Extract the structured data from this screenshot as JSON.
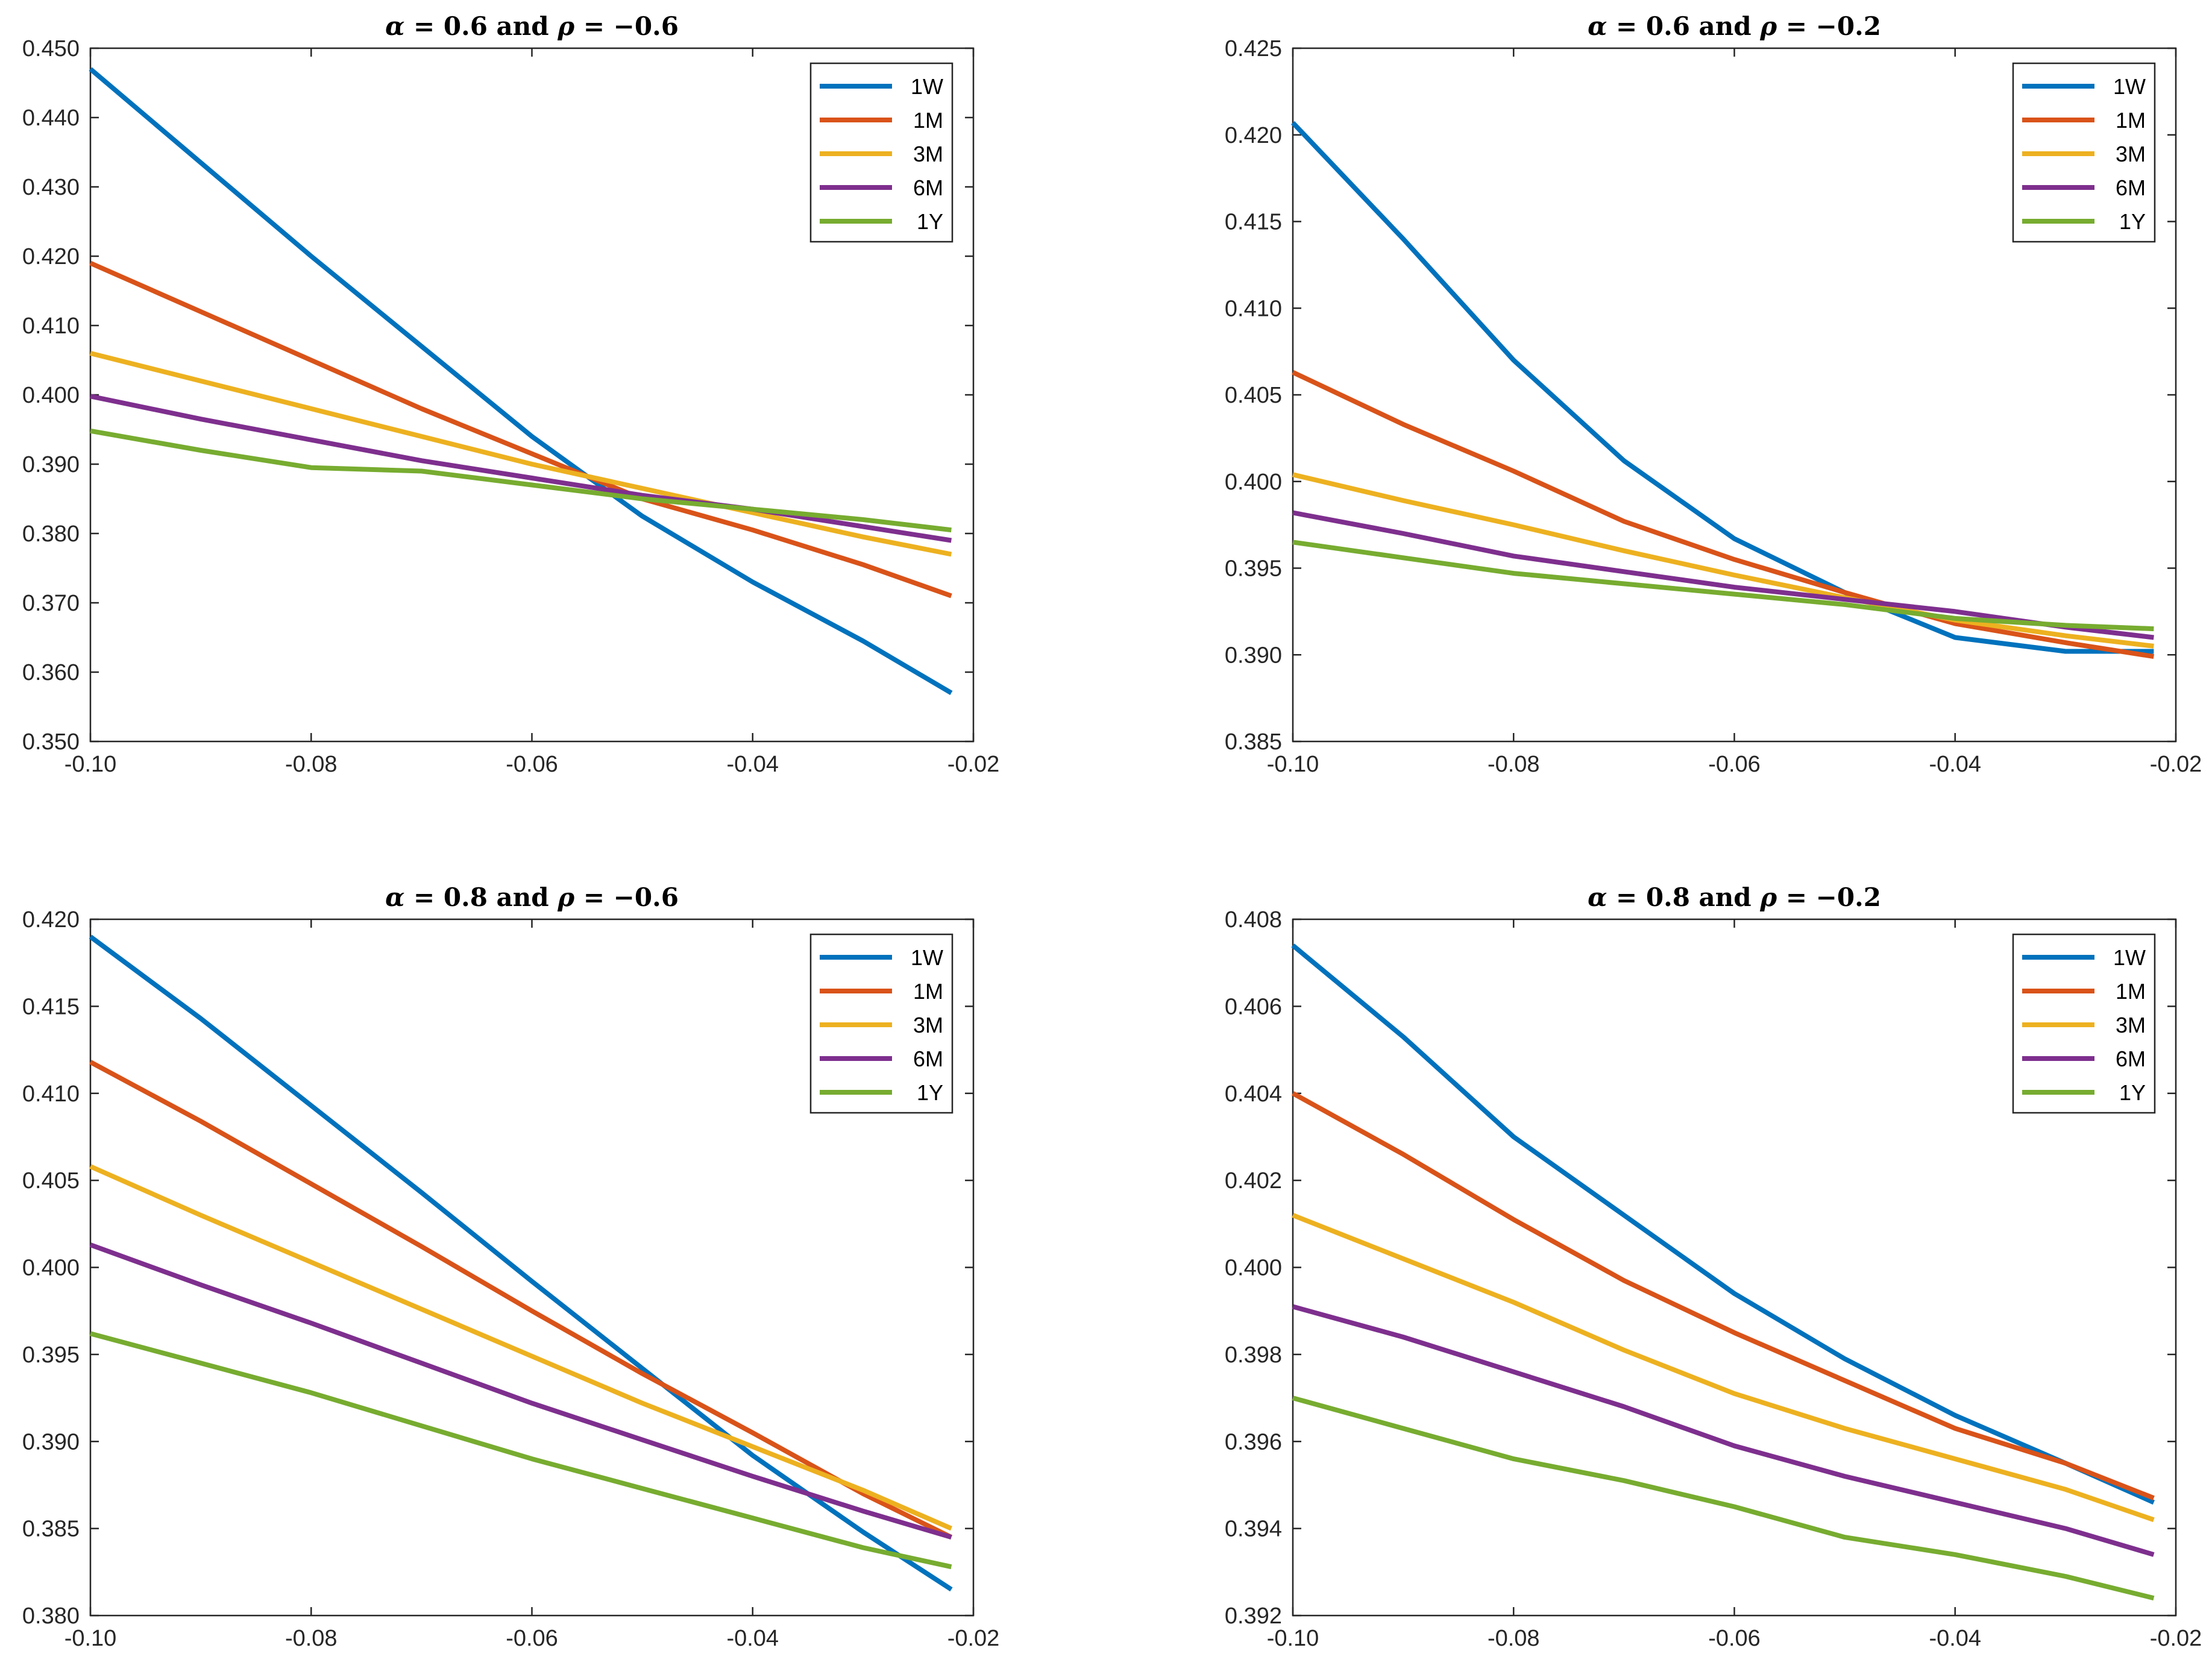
{
  "chart_data": [
    {
      "type": "line",
      "title": "α = 0.6 and ρ = −0.6",
      "title_parts": [
        "α",
        " = 0.6 and ",
        "ρ",
        " = −0.6"
      ],
      "xlabel": "",
      "ylabel": "",
      "xlim": [
        -0.1,
        -0.02
      ],
      "ylim": [
        0.35,
        0.45
      ],
      "x_ticks": [
        -0.1,
        -0.08,
        -0.06,
        -0.04,
        -0.02
      ],
      "x_tick_labels": [
        "-0.10",
        "-0.08",
        "-0.06",
        "-0.04",
        "-0.02"
      ],
      "y_ticks": [
        0.35,
        0.36,
        0.37,
        0.38,
        0.39,
        0.4,
        0.41,
        0.42,
        0.43,
        0.44,
        0.45
      ],
      "y_tick_labels": [
        "0.350",
        "0.360",
        "0.370",
        "0.380",
        "0.390",
        "0.400",
        "0.410",
        "0.420",
        "0.430",
        "0.440",
        "0.450"
      ],
      "grid": false,
      "legend_position": "top-right",
      "x": [
        -0.1,
        -0.09,
        -0.08,
        -0.07,
        -0.06,
        -0.05,
        -0.04,
        -0.03,
        -0.022
      ],
      "series": [
        {
          "name": "1W",
          "values": [
            0.447,
            0.4335,
            0.42,
            0.407,
            0.394,
            0.3825,
            0.373,
            0.3645,
            0.357
          ]
        },
        {
          "name": "1M",
          "values": [
            0.419,
            0.412,
            0.405,
            0.398,
            0.3915,
            0.385,
            0.3805,
            0.3755,
            0.371
          ]
        },
        {
          "name": "3M",
          "values": [
            0.406,
            0.402,
            0.398,
            0.394,
            0.39,
            0.3865,
            0.383,
            0.3795,
            0.377
          ]
        },
        {
          "name": "6M",
          "values": [
            0.3998,
            0.3965,
            0.3935,
            0.3905,
            0.388,
            0.3855,
            0.3835,
            0.381,
            0.379
          ]
        },
        {
          "name": "1Y",
          "values": [
            0.3948,
            0.392,
            0.3895,
            0.389,
            0.387,
            0.385,
            0.3835,
            0.382,
            0.3805
          ]
        }
      ]
    },
    {
      "type": "line",
      "title": "α = 0.6 and ρ = −0.2",
      "title_parts": [
        "α",
        " = 0.6 and ",
        "ρ",
        " = −0.2"
      ],
      "xlabel": "",
      "ylabel": "",
      "xlim": [
        -0.1,
        -0.02
      ],
      "ylim": [
        0.385,
        0.425
      ],
      "x_ticks": [
        -0.1,
        -0.08,
        -0.06,
        -0.04,
        -0.02
      ],
      "x_tick_labels": [
        "-0.10",
        "-0.08",
        "-0.06",
        "-0.04",
        "-0.02"
      ],
      "y_ticks": [
        0.385,
        0.39,
        0.395,
        0.4,
        0.405,
        0.41,
        0.415,
        0.42,
        0.425
      ],
      "y_tick_labels": [
        "0.385",
        "0.390",
        "0.395",
        "0.400",
        "0.405",
        "0.410",
        "0.415",
        "0.420",
        "0.425"
      ],
      "grid": false,
      "legend_position": "top-right",
      "x": [
        -0.1,
        -0.09,
        -0.08,
        -0.07,
        -0.06,
        -0.05,
        -0.04,
        -0.03,
        -0.022
      ],
      "series": [
        {
          "name": "1W",
          "values": [
            0.4207,
            0.414,
            0.407,
            0.4012,
            0.3967,
            0.3936,
            0.391,
            0.3902,
            0.3902
          ]
        },
        {
          "name": "1M",
          "values": [
            0.4063,
            0.4033,
            0.4006,
            0.3977,
            0.3955,
            0.3936,
            0.3918,
            0.3907,
            0.3899
          ]
        },
        {
          "name": "3M",
          "values": [
            0.4004,
            0.3989,
            0.3975,
            0.396,
            0.3946,
            0.3933,
            0.392,
            0.3911,
            0.3905
          ]
        },
        {
          "name": "6M",
          "values": [
            0.3982,
            0.397,
            0.3957,
            0.3948,
            0.3939,
            0.3932,
            0.3925,
            0.3916,
            0.391
          ]
        },
        {
          "name": "1Y",
          "values": [
            0.3965,
            0.3956,
            0.3947,
            0.3941,
            0.3935,
            0.3929,
            0.3921,
            0.3917,
            0.3915
          ]
        }
      ]
    },
    {
      "type": "line",
      "title": "α = 0.8 and ρ = −0.6",
      "title_parts": [
        "α",
        " = 0.8 and ",
        "ρ",
        " = −0.6"
      ],
      "xlabel": "",
      "ylabel": "",
      "xlim": [
        -0.1,
        -0.02
      ],
      "ylim": [
        0.38,
        0.42
      ],
      "x_ticks": [
        -0.1,
        -0.08,
        -0.06,
        -0.04,
        -0.02
      ],
      "x_tick_labels": [
        "-0.10",
        "-0.08",
        "-0.06",
        "-0.04",
        "-0.02"
      ],
      "y_ticks": [
        0.38,
        0.385,
        0.39,
        0.395,
        0.4,
        0.405,
        0.41,
        0.415,
        0.42
      ],
      "y_tick_labels": [
        "0.380",
        "0.385",
        "0.390",
        "0.395",
        "0.400",
        "0.405",
        "0.410",
        "0.415",
        "0.420"
      ],
      "grid": false,
      "legend_position": "top-right",
      "x": [
        -0.1,
        -0.09,
        -0.08,
        -0.07,
        -0.06,
        -0.05,
        -0.04,
        -0.03,
        -0.022
      ],
      "series": [
        {
          "name": "1W",
          "values": [
            0.419,
            0.4143,
            0.4093,
            0.4043,
            0.3992,
            0.3942,
            0.3892,
            0.3848,
            0.3815
          ]
        },
        {
          "name": "1M",
          "values": [
            0.4118,
            0.4084,
            0.4048,
            0.4012,
            0.3975,
            0.3939,
            0.3905,
            0.387,
            0.3845
          ]
        },
        {
          "name": "3M",
          "values": [
            0.4058,
            0.403,
            0.4003,
            0.3976,
            0.3949,
            0.3922,
            0.3897,
            0.3872,
            0.385
          ]
        },
        {
          "name": "6M",
          "values": [
            0.4013,
            0.399,
            0.3968,
            0.3945,
            0.3922,
            0.3901,
            0.388,
            0.386,
            0.3845
          ]
        },
        {
          "name": "1Y",
          "values": [
            0.3962,
            0.3945,
            0.3928,
            0.3909,
            0.389,
            0.3873,
            0.3856,
            0.3839,
            0.3828
          ]
        }
      ]
    },
    {
      "type": "line",
      "title": "α = 0.8 and ρ = −0.2",
      "title_parts": [
        "α",
        " = 0.8 and ",
        "ρ",
        " = −0.2"
      ],
      "xlabel": "",
      "ylabel": "",
      "xlim": [
        -0.1,
        -0.02
      ],
      "ylim": [
        0.392,
        0.408
      ],
      "x_ticks": [
        -0.1,
        -0.08,
        -0.06,
        -0.04,
        -0.02
      ],
      "x_tick_labels": [
        "-0.10",
        "-0.08",
        "-0.06",
        "-0.04",
        "-0.02"
      ],
      "y_ticks": [
        0.392,
        0.394,
        0.396,
        0.398,
        0.4,
        0.402,
        0.404,
        0.406,
        0.408
      ],
      "y_tick_labels": [
        "0.392",
        "0.394",
        "0.396",
        "0.398",
        "0.400",
        "0.402",
        "0.404",
        "0.406",
        "0.408"
      ],
      "grid": false,
      "legend_position": "top-right",
      "x": [
        -0.1,
        -0.09,
        -0.08,
        -0.07,
        -0.06,
        -0.05,
        -0.04,
        -0.03,
        -0.022
      ],
      "series": [
        {
          "name": "1W",
          "values": [
            0.4074,
            0.4053,
            0.403,
            0.4012,
            0.3994,
            0.3979,
            0.3966,
            0.3955,
            0.3946
          ]
        },
        {
          "name": "1M",
          "values": [
            0.404,
            0.4026,
            0.4011,
            0.3997,
            0.3985,
            0.3974,
            0.3963,
            0.3955,
            0.3947
          ]
        },
        {
          "name": "3M",
          "values": [
            0.4012,
            0.4002,
            0.3992,
            0.3981,
            0.3971,
            0.3963,
            0.3956,
            0.3949,
            0.3942
          ]
        },
        {
          "name": "6M",
          "values": [
            0.3991,
            0.3984,
            0.3976,
            0.3968,
            0.3959,
            0.3952,
            0.3946,
            0.394,
            0.3934
          ]
        },
        {
          "name": "1Y",
          "values": [
            0.397,
            0.3963,
            0.3956,
            0.3951,
            0.3945,
            0.3938,
            0.3934,
            0.3929,
            0.3924
          ]
        }
      ]
    }
  ],
  "colors": {
    "1W": "#0072BD",
    "1M": "#D95319",
    "3M": "#EDB120",
    "6M": "#7E2F8E",
    "1Y": "#77AC30",
    "axis": "#262626",
    "legend_border": "#262626"
  }
}
